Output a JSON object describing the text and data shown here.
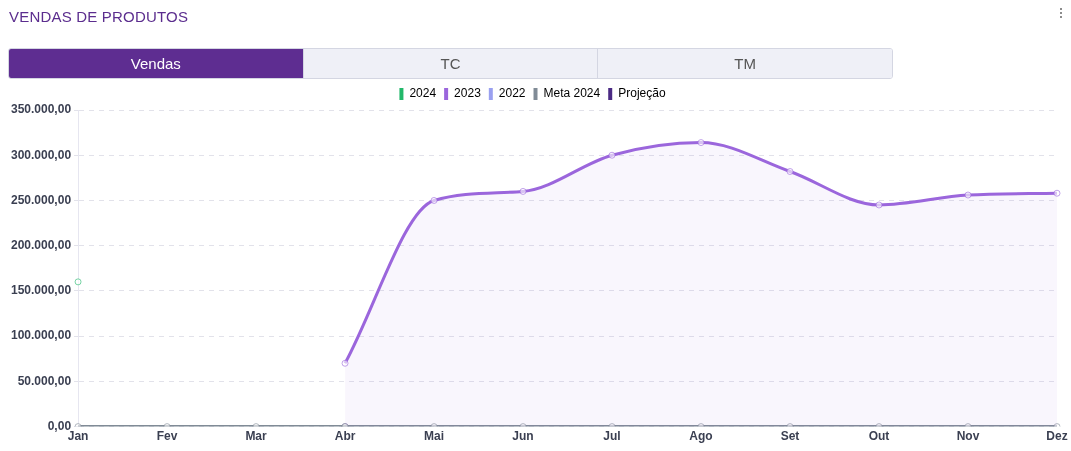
{
  "chart_data": {
    "type": "line",
    "title": "VENDAS DE PRODUTOS",
    "annotations": [
      "Vendas",
      "TC",
      "TM"
    ],
    "categories": [
      "Jan",
      "Fev",
      "Mar",
      "Abr",
      "Mai",
      "Jun",
      "Jul",
      "Ago",
      "Set",
      "Out",
      "Nov",
      "Dez"
    ],
    "series": [
      {
        "name": "2024",
        "color": "#22b86a",
        "values": [
          160000,
          null,
          null,
          null,
          null,
          null,
          null,
          null,
          null,
          null,
          null,
          null
        ]
      },
      {
        "name": "2023",
        "type": "area",
        "color": "#9b66dc",
        "values": [
          null,
          null,
          null,
          70000,
          250000,
          260000,
          300000,
          314000,
          282000,
          245000,
          256000,
          258000
        ]
      },
      {
        "name": "2022",
        "color": "#9aa0f0",
        "values": [
          null,
          null,
          null,
          null,
          null,
          null,
          null,
          null,
          null,
          null,
          null,
          null
        ]
      },
      {
        "name": "Meta 2024",
        "color": "#808b96",
        "values": [
          0,
          0,
          0,
          0,
          0,
          0,
          0,
          0,
          0,
          0,
          0,
          0
        ]
      },
      {
        "name": "Projeção",
        "color": "#4b2a84",
        "values": [
          null,
          null,
          null,
          0,
          null,
          null,
          null,
          null,
          null,
          null,
          null,
          null
        ]
      }
    ],
    "ylim": [
      0,
      350000
    ],
    "yticks": [
      {
        "value": 0,
        "label": "0,00"
      },
      {
        "value": 50000,
        "label": "50.000,00"
      },
      {
        "value": 100000,
        "label": "100.000,00"
      },
      {
        "value": 150000,
        "label": "150.000,00"
      },
      {
        "value": 200000,
        "label": "200.000,00"
      },
      {
        "value": 250000,
        "label": "250.000,00"
      },
      {
        "value": 300000,
        "label": "300.000,00"
      },
      {
        "value": 350000,
        "label": "350.000,00"
      }
    ],
    "grid": "y",
    "legend": "top",
    "marker": "circle",
    "line_style": "solid"
  }
}
